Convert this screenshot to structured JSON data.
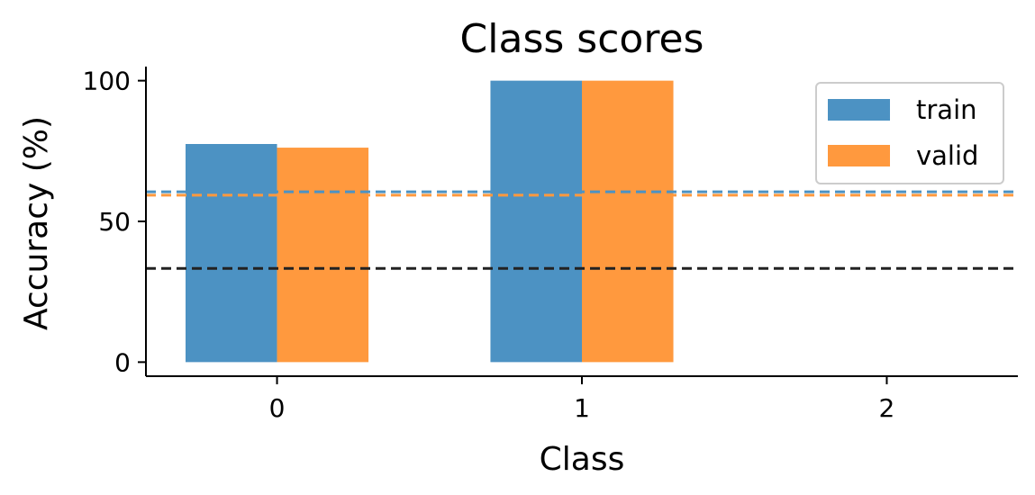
{
  "chart_data": {
    "type": "bar",
    "title": "Class scores",
    "xlabel": "Class",
    "ylabel": "Accuracy (%)",
    "categories": [
      "0",
      "1",
      "2"
    ],
    "yticks": [
      0,
      50,
      100
    ],
    "ylim": [
      -5,
      105
    ],
    "series": [
      {
        "name": "train",
        "color": "#4C92C3",
        "values": [
          77.5,
          100,
          0
        ]
      },
      {
        "name": "valid",
        "color": "#FF993E",
        "values": [
          76.2,
          100,
          0
        ]
      }
    ],
    "reference_lines": [
      {
        "value": 60.5,
        "color": "#4C92C3",
        "style": "dashed"
      },
      {
        "value": 59.3,
        "color": "#FF993E",
        "style": "dashed"
      },
      {
        "value": 33.3,
        "color": "#222222",
        "style": "dashed"
      }
    ],
    "legend": {
      "placement": "top-right"
    },
    "grid": false
  }
}
